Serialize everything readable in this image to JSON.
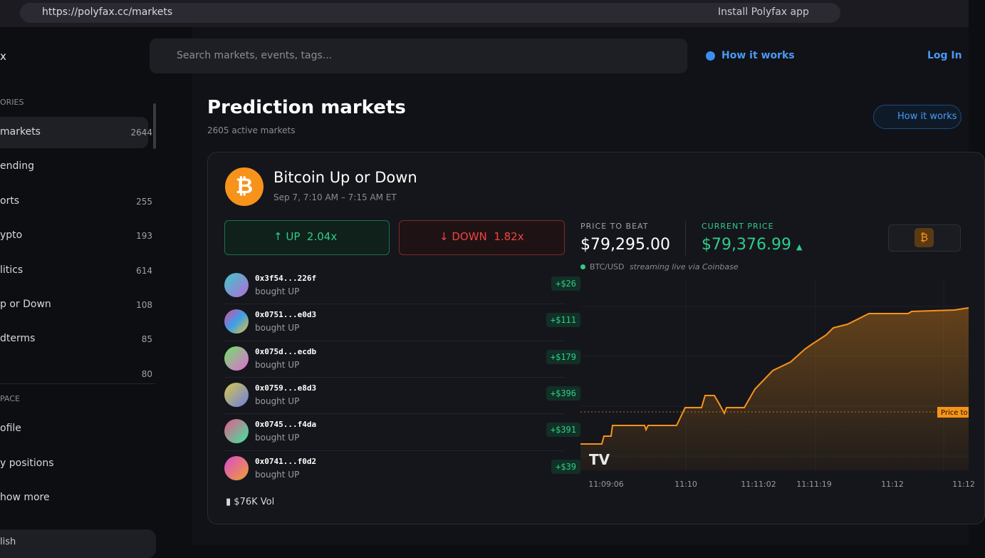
{
  "browser": {
    "url": "https://polyfax.cc/markets",
    "install": "Install Polyfax app"
  },
  "sidebar": {
    "logo": "x",
    "section1": "ORIES",
    "items": [
      {
        "label": "markets",
        "count": 2644
      },
      {
        "label": "ending"
      },
      {
        "label": "orts",
        "count": 255
      },
      {
        "label": "ypto",
        "count": 193
      },
      {
        "label": "litics",
        "count": 614
      },
      {
        "label": "p or Down",
        "count": 108
      },
      {
        "label": "dterms",
        "count": 85
      },
      {
        "count": 80
      }
    ],
    "section2": "PACE",
    "links": [
      "ofile",
      "y positions",
      "how more"
    ],
    "language": "lish"
  },
  "topbar": {
    "search": "Search markets, events, tags...",
    "how": "How it works",
    "login": "Log In"
  },
  "header": {
    "title": "Prediction markets",
    "subtitle": "2605 active markets",
    "how": "How it works"
  },
  "card": {
    "title": "Bitcoin Up or Down",
    "date": "Sep 7, 7:10 AM – 7:15 AM ET",
    "up": {
      "label": "UP",
      "odds": "2.04x"
    },
    "down": {
      "label": "DOWN",
      "odds": "1.82x"
    },
    "trades": [
      {
        "address": "0x3f54...226f",
        "action": "bought UP",
        "amount": "+$26"
      },
      {
        "address": "0x0751...e0d3",
        "action": "bought UP",
        "amount": "+$111"
      },
      {
        "address": "0x075d...ecdb",
        "action": "bought UP",
        "amount": "+$179"
      },
      {
        "address": "0x0759...e8d3",
        "action": "bought UP",
        "amount": "+$396"
      },
      {
        "address": "0x0745...f4da",
        "action": "bought UP",
        "amount": "+$391"
      },
      {
        "address": "0x0741...f0d2",
        "action": "bought UP",
        "amount": "+$39"
      }
    ],
    "volume": "$76K Vol",
    "price_to_beat_label": "PRICE TO BEAT",
    "price_to_beat": "$79,295.00",
    "current_price_label": "CURRENT PRICE",
    "current_price": "$79,376.99",
    "pair": "BTC/USD",
    "stream": "streaming live via Coinbase",
    "line_label": "Price to",
    "times": [
      "11:09:06",
      "11:10",
      "11:11:02",
      "11:11:19",
      "11:12",
      "11:12"
    ]
  }
}
